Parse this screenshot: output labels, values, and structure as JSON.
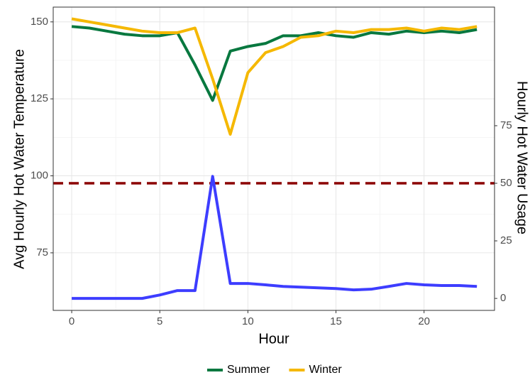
{
  "chart_data": {
    "type": "line",
    "x_label": "Hour",
    "y_label": "Avg Hourly Hot Water Temperature",
    "y2_label": "Hourly Hot Water Usage",
    "y2_label_color": "#1f1fff",
    "x": [
      0,
      1,
      2,
      3,
      4,
      5,
      6,
      7,
      8,
      9,
      10,
      11,
      12,
      13,
      14,
      15,
      16,
      17,
      18,
      19,
      20,
      21,
      22,
      23
    ],
    "xlim": [
      -1.05,
      24.0
    ],
    "xticks": [
      0,
      5,
      10,
      15,
      20
    ],
    "ylim": [
      56.3,
      154.8
    ],
    "yticks": [
      75,
      100,
      125,
      150
    ],
    "y2lim": [
      -5.2,
      126.5
    ],
    "y2ticks": [
      0,
      25,
      50,
      75
    ],
    "grid": true,
    "legend_position": "bottom",
    "series": [
      {
        "name": "Summer",
        "color": "#08783f",
        "values": [
          148.5,
          148,
          147,
          146,
          145.5,
          145.5,
          146.5,
          136,
          124.5,
          140.5,
          142,
          143,
          145.5,
          145.5,
          146.5,
          145.5,
          145,
          146.5,
          146,
          147,
          146.5,
          147,
          146.5,
          147.5
        ]
      },
      {
        "name": "Winter",
        "color": "#f5b800",
        "values": [
          151,
          150,
          149,
          148,
          147,
          146.5,
          146.5,
          148,
          131.5,
          113.5,
          133.5,
          140,
          142,
          145,
          145.5,
          147,
          146.5,
          147.5,
          147.5,
          148,
          147,
          148,
          147.5,
          148.5
        ]
      },
      {
        "axis": "y2",
        "color": "#3d3dff",
        "values": [
          0,
          0,
          0,
          0,
          0,
          1.5,
          3.4,
          3.4,
          53,
          6.5,
          6.5,
          5.9,
          5.2,
          4.9,
          4.6,
          4.3,
          3.7,
          4,
          5.2,
          6.5,
          5.9,
          5.6,
          5.6,
          5.2
        ]
      }
    ],
    "reference_lines": [
      {
        "axis": "y2",
        "value": 50,
        "color": "#8b0000"
      }
    ]
  }
}
